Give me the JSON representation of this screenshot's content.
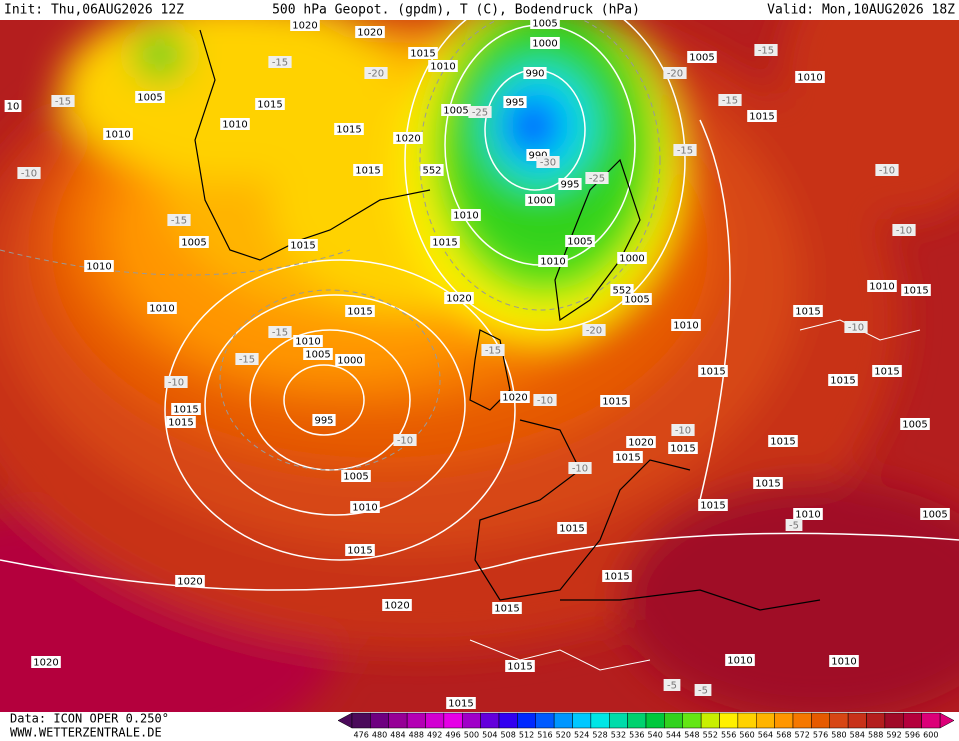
{
  "header": {
    "init": "Init: Thu,06AUG2026 12Z",
    "title": "500 hPa Geopot. (gpdm), T (C), Bodendruck (hPa)",
    "valid": "Valid: Mon,10AUG2026 18Z"
  },
  "footer": {
    "source": "Data: ICON OPER 0.250°",
    "site": "WWW.WETTERZENTRALE.DE"
  },
  "pressure_labels": [
    "1020",
    "1020",
    "1005",
    "1000",
    "1015",
    "1010",
    "990",
    "1005",
    "1010",
    "1005",
    "1015",
    "1010",
    "995",
    "1005",
    "1015",
    "1010",
    "1015",
    "1020",
    "990",
    "1015",
    "552",
    "995",
    "1000",
    "1010",
    "1005",
    "1015",
    "1015",
    "1005",
    "1000",
    "1010",
    "1010",
    "1010",
    "1015",
    "1020",
    "1005",
    "552",
    "1010",
    "1015",
    "1015",
    "1010",
    "1010",
    "1005",
    "1000",
    "1015",
    "1015",
    "1015",
    "1015",
    "1015",
    "1020",
    "1015",
    "995",
    "1005",
    "1020",
    "1015",
    "1015",
    "1015",
    "1005",
    "1015",
    "1010",
    "1015",
    "1010",
    "1005",
    "1015",
    "1015",
    "1020",
    "1015",
    "1020",
    "1015",
    "1020",
    "1010",
    "1010",
    "1015",
    "1015",
    "10"
  ],
  "temperature_labels": [
    "-15",
    "-20",
    "-15",
    "-10",
    "-15",
    "-20",
    "-15",
    "-15",
    "-10",
    "-10",
    "-10",
    "-10",
    "-10",
    "-10",
    "-10",
    "-10",
    "-15",
    "-15",
    "-20",
    "-15",
    "-25",
    "-30",
    "-25",
    "-15",
    "-5",
    "-5",
    "-5"
  ],
  "colorbar": {
    "ticks": [
      476,
      480,
      484,
      488,
      492,
      496,
      500,
      504,
      508,
      512,
      516,
      520,
      524,
      528,
      532,
      536,
      540,
      544,
      548,
      552,
      556,
      560,
      564,
      568,
      572,
      576,
      580,
      584,
      588,
      592,
      596,
      600
    ],
    "colors": [
      "#4b0a5a",
      "#6e0080",
      "#960096",
      "#b400b4",
      "#d200d2",
      "#e600e6",
      "#a000c8",
      "#6400dc",
      "#3200f0",
      "#0028ff",
      "#005aff",
      "#0096ff",
      "#00c8ff",
      "#00e6e6",
      "#00dcaa",
      "#00d26e",
      "#00c83c",
      "#32d21e",
      "#64e614",
      "#c8f000",
      "#fff000",
      "#ffd200",
      "#ffb400",
      "#ff9600",
      "#f57800",
      "#e65a00",
      "#d74614",
      "#c83219",
      "#b41e1e",
      "#a00a28",
      "#b4003c",
      "#dc0078"
    ]
  }
}
